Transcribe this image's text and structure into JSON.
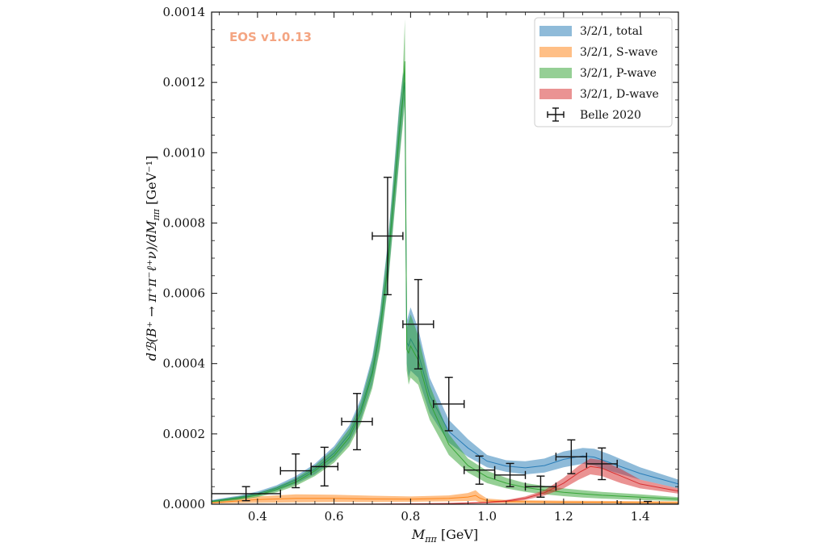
{
  "chart_data": {
    "type": "line",
    "title": "",
    "watermark": "EOS v1.0.13",
    "xlabel": "M_{ππ} [GeV]",
    "xlabel_main": "M",
    "xlabel_sub": "ππ",
    "xlabel_unit": " [GeV]",
    "ylabel": "dB(B⁺ → π⁺π⁻ℓ⁺ν)/dM_{ππ} [GeV⁻¹]",
    "ylabel_main": "dℬ(B⁺ → π⁺π⁻ℓ⁺ν)/dM",
    "ylabel_sub": "ππ",
    "ylabel_unit": " [GeV⁻¹]",
    "xlim": [
      0.28,
      1.5
    ],
    "ylim": [
      0.0,
      0.0014
    ],
    "xticks": [
      0.4,
      0.6,
      0.8,
      1.0,
      1.2,
      1.4
    ],
    "xtick_labels": [
      "0.4",
      "0.6",
      "0.8",
      "1.0",
      "1.2",
      "1.4"
    ],
    "yticks": [
      0.0,
      0.0002,
      0.0004,
      0.0006,
      0.0008,
      0.001,
      0.0012,
      0.0014
    ],
    "ytick_labels": [
      "0.0000",
      "0.0002",
      "0.0004",
      "0.0006",
      "0.0008",
      "0.0010",
      "0.0012",
      "0.0014"
    ],
    "grid": false,
    "legend_position": "top-right",
    "series": [
      {
        "name": "3/2/1, total",
        "kind": "band",
        "color": "#1f77b4",
        "x": [
          0.28,
          0.35,
          0.4,
          0.45,
          0.5,
          0.55,
          0.6,
          0.64,
          0.67,
          0.7,
          0.72,
          0.74,
          0.755,
          0.77,
          0.78,
          0.785,
          0.79,
          0.795,
          0.8,
          0.82,
          0.85,
          0.9,
          0.95,
          1.0,
          1.05,
          1.1,
          1.15,
          1.2,
          1.25,
          1.28,
          1.32,
          1.4,
          1.5
        ],
        "lower": [
          6e-06,
          1.4e-05,
          2.4e-05,
          3.8e-05,
          5.8e-05,
          8.5e-05,
          0.000125,
          0.000175,
          0.00024,
          0.00034,
          0.00045,
          0.00062,
          0.0008,
          0.00098,
          0.0011,
          0.00116,
          0.0004,
          0.00036,
          0.00038,
          0.00036,
          0.00026,
          0.000175,
          0.000135,
          0.000105,
          9.2e-05,
          8.5e-05,
          9e-05,
          0.000105,
          0.000115,
          0.00011,
          9.5e-05,
          7e-05,
          4.5e-05
        ],
        "upper": [
          1.2e-05,
          2.4e-05,
          3.6e-05,
          5.4e-05,
          8e-05,
          0.000115,
          0.000165,
          0.000225,
          0.0003,
          0.00042,
          0.00055,
          0.00074,
          0.00093,
          0.00113,
          0.00122,
          0.00124,
          0.00052,
          0.00054,
          0.00056,
          0.0005,
          0.00036,
          0.00024,
          0.000185,
          0.00014,
          0.000125,
          0.000122,
          0.00013,
          0.00015,
          0.00016,
          0.000158,
          0.000142,
          0.000105,
          7e-05
        ]
      },
      {
        "name": "3/2/1, S-wave",
        "kind": "band",
        "color": "#ff7f0e",
        "x": [
          0.28,
          0.4,
          0.5,
          0.6,
          0.7,
          0.8,
          0.9,
          0.95,
          0.97,
          0.98,
          1.0,
          1.05,
          1.2,
          1.35,
          1.5
        ],
        "lower": [
          2e-06,
          4e-06,
          5e-06,
          6e-06,
          6e-06,
          7e-06,
          8e-06,
          9e-06,
          1e-05,
          6e-06,
          4e-06,
          3e-06,
          2e-06,
          2e-06,
          1e-06
        ],
        "upper": [
          6e-06,
          2.2e-05,
          2.8e-05,
          2.7e-05,
          2.4e-05,
          2.2e-05,
          2.5e-05,
          3.2e-05,
          4e-05,
          3e-05,
          1.6e-05,
          1.2e-05,
          1e-05,
          9e-06,
          8e-06
        ]
      },
      {
        "name": "3/2/1, P-wave",
        "kind": "band",
        "color": "#2ca02c",
        "x": [
          0.28,
          0.35,
          0.4,
          0.45,
          0.5,
          0.55,
          0.6,
          0.64,
          0.67,
          0.7,
          0.72,
          0.74,
          0.755,
          0.77,
          0.78,
          0.785,
          0.79,
          0.795,
          0.8,
          0.82,
          0.85,
          0.9,
          0.95,
          1.0,
          1.05,
          1.1,
          1.15,
          1.2,
          1.25,
          1.3,
          1.4,
          1.5
        ],
        "lower": [
          5e-06,
          1.2e-05,
          2e-05,
          3.4e-05,
          5.2e-05,
          8e-05,
          0.000118,
          0.000165,
          0.00023,
          0.00033,
          0.00044,
          0.00061,
          0.00079,
          0.00097,
          0.00108,
          0.00114,
          0.00038,
          0.00034,
          0.00036,
          0.00034,
          0.00024,
          0.00014,
          9e-05,
          6e-05,
          4.5e-05,
          3.5e-05,
          2.8e-05,
          2.3e-05,
          1.9e-05,
          1.6e-05,
          1.2e-05,
          9e-06
        ],
        "upper": [
          1e-05,
          2.2e-05,
          3.2e-05,
          5e-05,
          7.4e-05,
          0.00011,
          0.000158,
          0.000215,
          0.00029,
          0.00041,
          0.00054,
          0.00073,
          0.00092,
          0.00112,
          0.00123,
          0.00138,
          0.0005,
          0.00052,
          0.00054,
          0.00048,
          0.00034,
          0.0002,
          0.00013,
          9.5e-05,
          7.5e-05,
          6e-05,
          5.2e-05,
          4.5e-05,
          4e-05,
          3.5e-05,
          2.8e-05,
          2e-05
        ]
      },
      {
        "name": "3/2/1, D-wave",
        "kind": "band",
        "color": "#d62728",
        "x": [
          0.28,
          0.7,
          0.9,
          1.0,
          1.05,
          1.1,
          1.15,
          1.2,
          1.24,
          1.27,
          1.3,
          1.35,
          1.4,
          1.5
        ],
        "lower": [
          0.0,
          0.0,
          1e-06,
          3e-06,
          6e-06,
          1.2e-05,
          2.5e-05,
          4.5e-05,
          7e-05,
          8.5e-05,
          8e-05,
          6e-05,
          4.5e-05,
          3e-05
        ],
        "upper": [
          0.0,
          1e-06,
          3e-06,
          7e-06,
          1.2e-05,
          2.2e-05,
          4e-05,
          7.5e-05,
          0.00011,
          0.00013,
          0.000125,
          0.0001,
          7e-05,
          4.5e-05
        ]
      },
      {
        "name": "Belle 2020",
        "kind": "errorbar",
        "color": "#111111",
        "points": [
          {
            "x": 0.37,
            "xerr": 0.09,
            "y": 3e-05,
            "yerr": 2e-05
          },
          {
            "x": 0.5,
            "xerr": 0.04,
            "y": 9.5e-05,
            "yerr": 4.8e-05
          },
          {
            "x": 0.575,
            "xerr": 0.035,
            "y": 0.000107,
            "yerr": 5.5e-05
          },
          {
            "x": 0.66,
            "xerr": 0.04,
            "y": 0.000235,
            "yerr": 8e-05
          },
          {
            "x": 0.74,
            "xerr": 0.04,
            "y": 0.000763,
            "yerr": 0.000167
          },
          {
            "x": 0.82,
            "xerr": 0.04,
            "y": 0.000512,
            "yerr": 0.000127
          },
          {
            "x": 0.9,
            "xerr": 0.04,
            "y": 0.000285,
            "yerr": 7.6e-05
          },
          {
            "x": 0.98,
            "xerr": 0.04,
            "y": 9.7e-05,
            "yerr": 4e-05
          },
          {
            "x": 1.06,
            "xerr": 0.04,
            "y": 8.3e-05,
            "yerr": 3.3e-05
          },
          {
            "x": 1.14,
            "xerr": 0.04,
            "y": 5e-05,
            "yerr": 3e-05
          },
          {
            "x": 1.22,
            "xerr": 0.04,
            "y": 0.000135,
            "yerr": 4.8e-05
          },
          {
            "x": 1.3,
            "xerr": 0.04,
            "y": 0.000115,
            "yerr": 4.5e-05
          },
          {
            "x": 1.42,
            "xerr": 0.08,
            "y": 0.0,
            "yerr": 8e-06
          }
        ]
      }
    ],
    "legend": [
      {
        "label": "3/2/1, total",
        "color": "#1f77b4",
        "kind": "band"
      },
      {
        "label": "3/2/1, S-wave",
        "color": "#ff7f0e",
        "kind": "band"
      },
      {
        "label": "3/2/1, P-wave",
        "color": "#2ca02c",
        "kind": "band"
      },
      {
        "label": "3/2/1, D-wave",
        "color": "#d62728",
        "kind": "band"
      },
      {
        "label": "Belle 2020",
        "color": "#111111",
        "kind": "errorbar"
      }
    ]
  }
}
